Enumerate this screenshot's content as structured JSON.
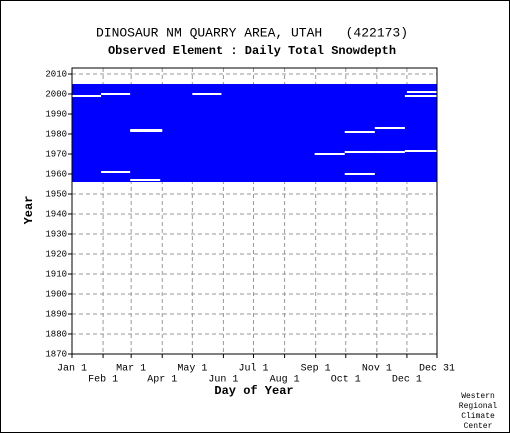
{
  "chart_data": {
    "type": "availability",
    "title": "DINOSAUR NM QUARRY AREA, UTAH   (422173)",
    "subtitle": "Observed Element : Daily Total Snowdepth",
    "x_label": "Day of Year",
    "y_label": "Year",
    "credit": [
      "Western",
      "Regional",
      "Climate",
      "Center"
    ],
    "color": "#0000ff",
    "grid": true,
    "xlim": [
      1,
      365
    ],
    "ylim": [
      1870,
      2013
    ],
    "xticks": [
      {
        "value": 1,
        "label": "Jan 1"
      },
      {
        "value": 32,
        "label": "Feb 1"
      },
      {
        "value": 60,
        "label": "Mar 1"
      },
      {
        "value": 91,
        "label": "Apr 1"
      },
      {
        "value": 121,
        "label": "May 1"
      },
      {
        "value": 152,
        "label": "Jun 1"
      },
      {
        "value": 182,
        "label": "Jul 1"
      },
      {
        "value": 213,
        "label": "Aug 1"
      },
      {
        "value": 244,
        "label": "Sep 1"
      },
      {
        "value": 274,
        "label": "Oct 1"
      },
      {
        "value": 305,
        "label": "Nov 1"
      },
      {
        "value": 335,
        "label": "Dec 1"
      },
      {
        "value": 365,
        "label": "Dec 31"
      }
    ],
    "yticks": [
      1870,
      1880,
      1890,
      1900,
      1910,
      1920,
      1930,
      1940,
      1950,
      1960,
      1970,
      1980,
      1990,
      2000,
      2010
    ],
    "coverage": {
      "days": [
        1,
        365
      ],
      "years": [
        1956,
        2005
      ]
    },
    "gaps": [
      {
        "year": 1999,
        "start": 1,
        "end": 30
      },
      {
        "year": 2000,
        "start": 30,
        "end": 59
      },
      {
        "year": 1982,
        "start": 59,
        "end": 91
      },
      {
        "year": 1981.5,
        "start": 59,
        "end": 91
      },
      {
        "year": 2000,
        "start": 121,
        "end": 150
      },
      {
        "year": 1981,
        "start": 273,
        "end": 303
      },
      {
        "year": 1983,
        "start": 303,
        "end": 333
      },
      {
        "year": 1970,
        "start": 243,
        "end": 273
      },
      {
        "year": 1971,
        "start": 273,
        "end": 303
      },
      {
        "year": 1971,
        "start": 303,
        "end": 333
      },
      {
        "year": 1971.5,
        "start": 333,
        "end": 365
      },
      {
        "year": 1960,
        "start": 273,
        "end": 303
      },
      {
        "year": 1961,
        "start": 30,
        "end": 59
      },
      {
        "year": 1999,
        "start": 333,
        "end": 365
      },
      {
        "year": 2001,
        "start": 335,
        "end": 365
      },
      {
        "year": 1957,
        "start": 59,
        "end": 89
      }
    ]
  }
}
